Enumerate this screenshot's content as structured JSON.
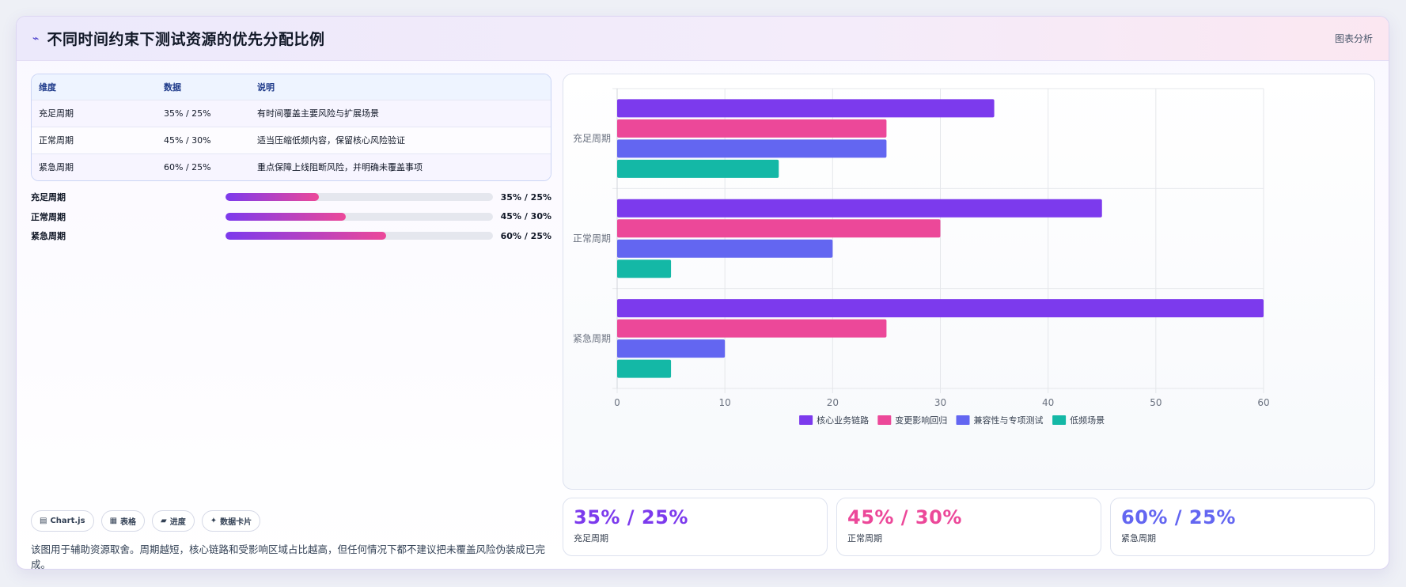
{
  "header": {
    "title_icon": "line-chart-icon",
    "title": "不同时间约束下测试资源的优先分配比例",
    "right_label": "图表分析"
  },
  "table": {
    "headers": [
      "维度",
      "数据",
      "说明"
    ],
    "rows": [
      [
        "充足周期",
        "35% / 25%",
        "有时间覆盖主要风险与扩展场景"
      ],
      [
        "正常周期",
        "45% / 30%",
        "适当压缩低频内容，保留核心风险验证"
      ],
      [
        "紧急周期",
        "60% / 25%",
        "重点保障上线阻断风险，并明确未覆盖事项"
      ]
    ]
  },
  "progress": [
    {
      "label": "充足周期",
      "value_text": "35% / 25%",
      "fill": 0.35
    },
    {
      "label": "正常周期",
      "value_text": "45% / 30%",
      "fill": 0.45
    },
    {
      "label": "紧急周期",
      "value_text": "60% / 25%",
      "fill": 0.6
    }
  ],
  "chips": [
    {
      "icon": "chart-icon",
      "glyph": "▤",
      "label": "Chart.js"
    },
    {
      "icon": "table-icon",
      "glyph": "▦",
      "label": "表格"
    },
    {
      "icon": "progress-icon",
      "glyph": "▰",
      "label": "进度"
    },
    {
      "icon": "sparkle-icon",
      "glyph": "✦",
      "label": "数据卡片"
    }
  ],
  "note": "该图用于辅助资源取舍。周期越短，核心链路和受影响区域占比越高，但任何情况下都不建议把未覆盖风险伪装成已完成。",
  "stats": [
    {
      "value": "35% / 25%",
      "label": "充足周期",
      "color": "#7c3aed"
    },
    {
      "value": "45% / 30%",
      "label": "正常周期",
      "color": "#ec4899"
    },
    {
      "value": "60% / 25%",
      "label": "紧急周期",
      "color": "#6366f1"
    }
  ],
  "chart_data": {
    "type": "bar",
    "orientation": "horizontal",
    "categories": [
      "充足周期",
      "正常周期",
      "紧急周期"
    ],
    "series": [
      {
        "name": "核心业务链路",
        "color": "#7c3aed",
        "values": [
          35,
          45,
          60
        ]
      },
      {
        "name": "变更影响回归",
        "color": "#ec4899",
        "values": [
          25,
          30,
          25
        ]
      },
      {
        "name": "兼容性与专项测试",
        "color": "#6366f1",
        "values": [
          25,
          20,
          10
        ]
      },
      {
        "name": "低频场景",
        "color": "#14b8a6",
        "values": [
          15,
          5,
          5
        ]
      }
    ],
    "xlim": [
      0,
      60
    ],
    "xticks": [
      0,
      10,
      20,
      30,
      40,
      50,
      60
    ],
    "grid": true,
    "legend_position": "bottom"
  }
}
